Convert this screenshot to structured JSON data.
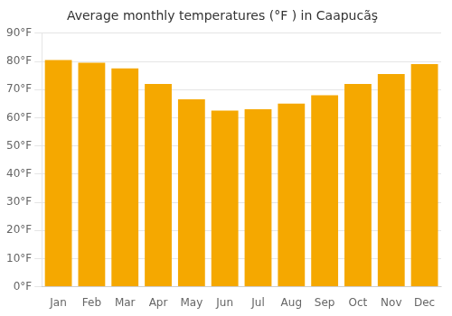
{
  "chart_data": {
    "type": "bar",
    "title": "Average monthly temperatures (°F ) in Caapucãş",
    "categories": [
      "Jan",
      "Feb",
      "Mar",
      "Apr",
      "May",
      "Jun",
      "Jul",
      "Aug",
      "Sep",
      "Oct",
      "Nov",
      "Dec"
    ],
    "values": [
      80.5,
      79.5,
      77.5,
      72,
      66.5,
      62.5,
      63,
      65,
      68,
      72,
      75.5,
      79
    ],
    "color": "#F5A800",
    "ylim": [
      0,
      90
    ],
    "yticks": [
      {
        "value": 0,
        "label": "0°F"
      },
      {
        "value": 10,
        "label": "10°F"
      },
      {
        "value": 20,
        "label": "20°F"
      },
      {
        "value": 30,
        "label": "30°F"
      },
      {
        "value": 40,
        "label": "40°F"
      },
      {
        "value": 50,
        "label": "50°F"
      },
      {
        "value": 60,
        "label": "60°F"
      },
      {
        "value": 70,
        "label": "70°F"
      },
      {
        "value": 80,
        "label": "80°F"
      },
      {
        "value": 90,
        "label": "90°F"
      }
    ],
    "grid": true
  }
}
